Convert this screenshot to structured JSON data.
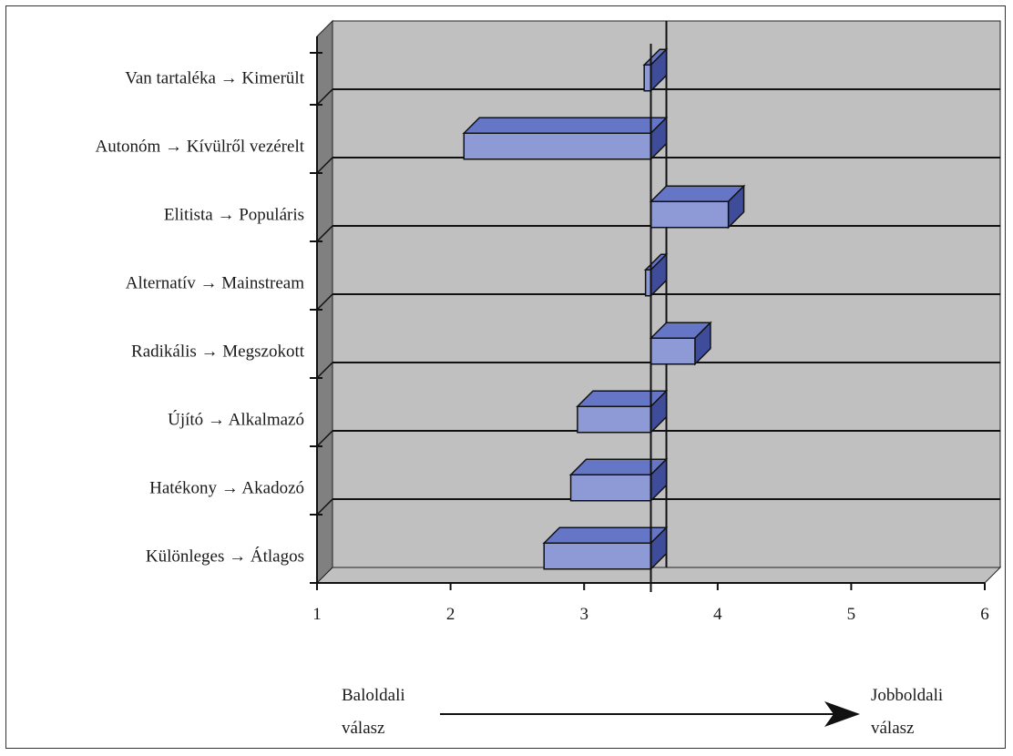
{
  "chart_data": {
    "type": "bar",
    "orientation": "horizontal",
    "style": "3d",
    "categories": [
      "Van tartaléka → Kimerült",
      "Autonóm → Kívülről vezérelt",
      "Elitista → Populáris",
      "Alternatív → Mainstream",
      "Radikális → Megszokott",
      "Újító → Alkalmazó",
      "Hatékony → Akadozó",
      "Különleges → Átlagos"
    ],
    "values": [
      3.45,
      2.1,
      4.08,
      3.46,
      3.83,
      2.95,
      2.9,
      2.7
    ],
    "baseline": 3.5,
    "xlim": [
      1,
      6
    ],
    "xticks": [
      "1",
      "2",
      "3",
      "4",
      "5",
      "6"
    ],
    "grid": true,
    "legend": "none",
    "colors": {
      "bar_front": "#8d9ad6",
      "bar_top": "#6676c6",
      "bar_side": "#3e4c9a",
      "plot_bg": "#c0c0c0",
      "wall": "#808080",
      "floor": "#c0c0c0"
    }
  },
  "annotations": {
    "left_note_line1": "Baloldali",
    "left_note_line2": "válasz",
    "right_note_line1": "Jobboldali",
    "right_note_line2": "válasz"
  }
}
